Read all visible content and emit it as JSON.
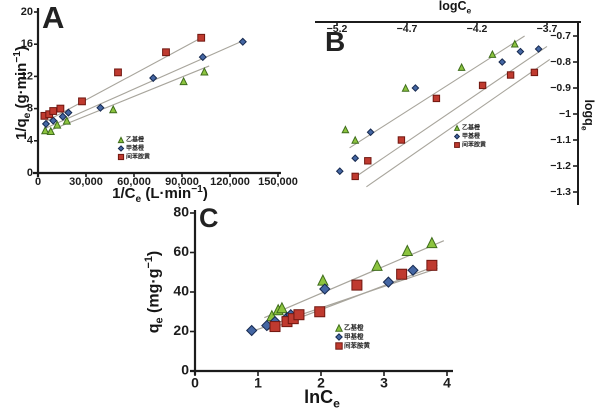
{
  "figure": {
    "background": "#ffffff",
    "colors": {
      "axis": "#1c1c1c",
      "text": "#1c1c1c",
      "trend_line": "#a8a59c",
      "ethyl_orange_fill": "#8cc43f",
      "ethyl_orange_stroke": "#3f6d1c",
      "methyl_orange_fill": "#4466a3",
      "methyl_orange_stroke": "#16294f",
      "metanil_yellow_fill": "#bf3a2f",
      "metanil_yellow_stroke": "#701710"
    }
  },
  "panels": {
    "a": {
      "letter": "A",
      "x_title": {
        "pre": "1/C",
        "sub": "e",
        "mid": " (L·min",
        "sup": "−1",
        "post": ")"
      },
      "y_title": {
        "pre": "1/q",
        "sub": "e",
        "mid": " (g·min",
        "sup": "−1",
        "post": ")"
      }
    },
    "b": {
      "letter": "B",
      "x_title": {
        "pre": "logC",
        "sub": "e"
      },
      "y_title": {
        "pre": "logq",
        "sub": "e"
      }
    },
    "c": {
      "letter": "C",
      "x_title": {
        "pre": "lnC",
        "sub": "e"
      },
      "y_title": {
        "pre": "q",
        "sub": "e",
        "mid": " (mg·g",
        "sup": "−1",
        "post": ")"
      }
    }
  },
  "chart_data": [
    {
      "id": "A",
      "type": "scatter",
      "xlabel": "1/Ce (L·min−1)",
      "ylabel": "1/qe (g·min−1)",
      "xlim": [
        0,
        150000
      ],
      "ylim": [
        0,
        20
      ],
      "xticks": [
        0,
        30000,
        60000,
        90000,
        120000,
        150000
      ],
      "xtick_labels": [
        "0",
        "30,000",
        "60,000",
        "90,000",
        "120,000",
        "150,000"
      ],
      "yticks": [
        0,
        4,
        8,
        12,
        16,
        20
      ],
      "ytick_labels": [
        "0",
        "4",
        "8",
        "12",
        "16",
        "20"
      ],
      "legend_position": "lower-center",
      "series": [
        {
          "name": "乙基橙",
          "marker": "triangle",
          "fill": "#8cc43f",
          "stroke": "#3f6d1c",
          "points": [
            [
              4500,
              5.3
            ],
            [
              8000,
              5.2
            ],
            [
              12000,
              6.0
            ],
            [
              18000,
              6.5
            ],
            [
              47000,
              7.9
            ],
            [
              91000,
              11.4
            ],
            [
              104000,
              12.6
            ]
          ],
          "trend": [
            [
              4000,
              5.0
            ],
            [
              107000,
              13.3
            ]
          ]
        },
        {
          "name": "甲基橙",
          "marker": "diamond",
          "fill": "#4466a3",
          "stroke": "#16294f",
          "points": [
            [
              5000,
              6.1
            ],
            [
              9500,
              6.5
            ],
            [
              15500,
              7.0
            ],
            [
              19000,
              7.5
            ],
            [
              39000,
              8.1
            ],
            [
              72000,
              11.8
            ],
            [
              103000,
              14.4
            ],
            [
              128000,
              16.3
            ]
          ],
          "trend": [
            [
              4000,
              5.5
            ],
            [
              129000,
              16.5
            ]
          ]
        },
        {
          "name": "间苯胺黄",
          "marker": "square",
          "fill": "#bf3a2f",
          "stroke": "#701710",
          "points": [
            [
              4000,
              7.1
            ],
            [
              7000,
              7.3
            ],
            [
              9500,
              7.7
            ],
            [
              14000,
              8.0
            ],
            [
              27500,
              8.9
            ],
            [
              50000,
              12.5
            ],
            [
              80000,
              15.0
            ],
            [
              102000,
              16.8
            ]
          ],
          "trend": [
            [
              4000,
              6.3
            ],
            [
              104000,
              17.0
            ]
          ]
        }
      ]
    },
    {
      "id": "B",
      "type": "scatter",
      "xlabel": "logCe",
      "ylabel": "logqe",
      "xlim": [
        -5.2,
        -3.7
      ],
      "ylim": [
        -1.3,
        -0.7
      ],
      "xticks": [
        -5.2,
        -4.7,
        -4.2,
        -3.7
      ],
      "xtick_labels": [
        "−5.2",
        "−4.7",
        "−4.2",
        "−3.7"
      ],
      "yticks": [
        -0.7,
        -0.8,
        -0.9,
        -1.0,
        -1.1,
        -1.2,
        -1.3
      ],
      "ytick_labels": [
        "−0.7",
        "−0.8",
        "−0.9",
        "−1",
        "−1.1",
        "−1.2",
        "−1.3"
      ],
      "legend_position": "center-right",
      "series": [
        {
          "name": "乙基橙",
          "marker": "triangle",
          "fill": "#8cc43f",
          "stroke": "#3f6d1c",
          "points": [
            [
              -5.14,
              -1.06
            ],
            [
              -5.07,
              -1.1
            ],
            [
              -4.71,
              -0.9
            ],
            [
              -4.31,
              -0.82
            ],
            [
              -4.09,
              -0.77
            ],
            [
              -3.93,
              -0.73
            ]
          ],
          "trend": [
            [
              -5.11,
              -1.13
            ],
            [
              -3.86,
              -0.7
            ]
          ]
        },
        {
          "name": "甲基橙",
          "marker": "diamond",
          "fill": "#4466a3",
          "stroke": "#16294f",
          "points": [
            [
              -5.18,
              -1.22
            ],
            [
              -5.07,
              -1.17
            ],
            [
              -4.96,
              -1.07
            ],
            [
              -4.64,
              -0.9
            ],
            [
              -4.02,
              -0.8
            ],
            [
              -3.89,
              -0.76
            ],
            [
              -3.76,
              -0.75
            ]
          ],
          "trend": [
            [
              -5.09,
              -1.25
            ],
            [
              -3.7,
              -0.74
            ]
          ]
        },
        {
          "name": "间苯胺黄",
          "marker": "square",
          "fill": "#bf3a2f",
          "stroke": "#701710",
          "points": [
            [
              -5.07,
              -1.24
            ],
            [
              -4.98,
              -1.18
            ],
            [
              -4.74,
              -1.1
            ],
            [
              -4.49,
              -0.94
            ],
            [
              -4.16,
              -0.89
            ],
            [
              -3.96,
              -0.85
            ],
            [
              -3.79,
              -0.84
            ]
          ],
          "trend": [
            [
              -4.99,
              -1.28
            ],
            [
              -3.68,
              -0.79
            ]
          ]
        }
      ]
    },
    {
      "id": "C",
      "type": "scatter",
      "xlabel": "lnCe",
      "ylabel": "qe (mg·g−1)",
      "xlim": [
        0,
        4
      ],
      "ylim": [
        0,
        80
      ],
      "xticks": [
        0,
        1,
        2,
        3,
        4
      ],
      "xtick_labels": [
        "0",
        "1",
        "2",
        "3",
        "4"
      ],
      "yticks": [
        0,
        20,
        40,
        60,
        80
      ],
      "ytick_labels": [
        "0",
        "20",
        "40",
        "60",
        "80"
      ],
      "legend_position": "lower-right",
      "series": [
        {
          "name": "乙基橙",
          "marker": "triangle",
          "fill": "#8cc43f",
          "stroke": "#3f6d1c",
          "points": [
            [
              1.22,
              28
            ],
            [
              1.32,
              31
            ],
            [
              1.38,
              32
            ],
            [
              2.03,
              46
            ],
            [
              2.89,
              53.5
            ],
            [
              3.37,
              61
            ],
            [
              3.76,
              65
            ]
          ],
          "trend": [
            [
              1.1,
              27
            ],
            [
              3.95,
              66
            ]
          ]
        },
        {
          "name": "甲基橙",
          "marker": "diamond",
          "fill": "#4466a3",
          "stroke": "#16294f",
          "points": [
            [
              0.9,
              20.5
            ],
            [
              1.14,
              23
            ],
            [
              1.27,
              25
            ],
            [
              1.46,
              27
            ],
            [
              1.52,
              28.5
            ],
            [
              2.06,
              41.5
            ],
            [
              3.07,
              45
            ],
            [
              3.46,
              51
            ]
          ],
          "trend": [
            [
              0.85,
              19.5
            ],
            [
              3.85,
              52
            ]
          ]
        },
        {
          "name": "间苯胺黄",
          "marker": "square",
          "fill": "#bf3a2f",
          "stroke": "#701710",
          "points": [
            [
              1.27,
              22.5
            ],
            [
              1.46,
              25
            ],
            [
              1.56,
              26.5
            ],
            [
              1.65,
              28.5
            ],
            [
              1.98,
              30
            ],
            [
              2.57,
              43.5
            ],
            [
              3.28,
              49
            ],
            [
              3.76,
              53.5
            ]
          ],
          "trend": [
            [
              1.15,
              20.8
            ],
            [
              3.85,
              53.5
            ]
          ]
        }
      ]
    }
  ]
}
